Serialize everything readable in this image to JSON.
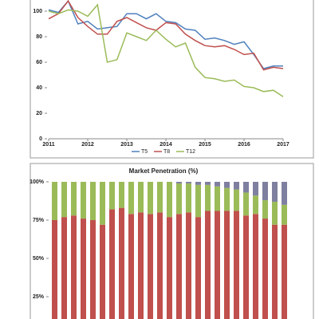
{
  "chart_data": [
    {
      "type": "line",
      "x": [
        2011,
        2011.25,
        2011.5,
        2011.75,
        2012,
        2012.25,
        2012.5,
        2012.75,
        2013,
        2013.25,
        2013.5,
        2013.75,
        2014,
        2014.25,
        2014.5,
        2014.75,
        2015,
        2015.25,
        2015.5,
        2015.75,
        2016,
        2016.25,
        2016.5,
        2016.75,
        2017
      ],
      "series": [
        {
          "name": "T5",
          "color": "#4f81bd",
          "values": [
            101,
            99,
            108,
            90,
            92,
            86,
            87,
            88,
            98,
            98,
            94,
            98,
            92,
            91,
            86,
            85,
            78,
            79,
            77,
            74,
            76,
            66,
            55,
            57,
            57
          ]
        },
        {
          "name": "T8",
          "color": "#c0504d",
          "values": [
            94,
            98,
            108,
            95,
            88,
            82,
            82,
            92,
            95,
            91,
            87,
            85,
            91,
            90,
            82,
            77,
            73,
            72,
            73,
            70,
            66,
            67,
            54,
            56,
            55
          ]
        },
        {
          "name": "T12",
          "color": "#9bbb59",
          "values": [
            100,
            98,
            101,
            100,
            96,
            105,
            60,
            62,
            83,
            80,
            77,
            85,
            78,
            72,
            75,
            56,
            48,
            47,
            45,
            46,
            41,
            40,
            37,
            38,
            33
          ]
        }
      ],
      "xlim": [
        2011,
        2017
      ],
      "xticks": [
        2011,
        2012,
        2013,
        2014,
        2015,
        2016,
        2017
      ],
      "ylim": [
        0,
        110
      ],
      "yticks": [
        0,
        20,
        40,
        60,
        80,
        100
      ],
      "legend": "bottom"
    },
    {
      "type": "stacked-bar",
      "title": "Market Penetration (%)",
      "series": [
        {
          "color": "#c0504d",
          "values": [
            75,
            77,
            78,
            76,
            75,
            72,
            82,
            83,
            79,
            80,
            79,
            80,
            77,
            79,
            80,
            77,
            81,
            81,
            81,
            81,
            78,
            79,
            76,
            72,
            72
          ]
        },
        {
          "color": "#9bbb59",
          "values": [
            25,
            23,
            22,
            24,
            25,
            28,
            18,
            17,
            21,
            20,
            21,
            20,
            23,
            20,
            19,
            21,
            17,
            16,
            15,
            14,
            15,
            12,
            12,
            15,
            13
          ]
        },
        {
          "color": "#7f7fa0",
          "values": [
            0,
            0,
            0,
            0,
            0,
            0,
            0,
            0,
            0,
            0,
            0,
            0,
            0,
            1,
            1,
            2,
            2,
            3,
            4,
            5,
            7,
            9,
            12,
            13,
            15
          ]
        }
      ],
      "ylim": [
        0,
        100
      ],
      "yticks": [
        {
          "value": 25,
          "label": "25%"
        },
        {
          "value": 50,
          "label": "50%"
        },
        {
          "value": 75,
          "label": "75%"
        },
        {
          "value": 100,
          "label": "100%"
        }
      ]
    }
  ]
}
